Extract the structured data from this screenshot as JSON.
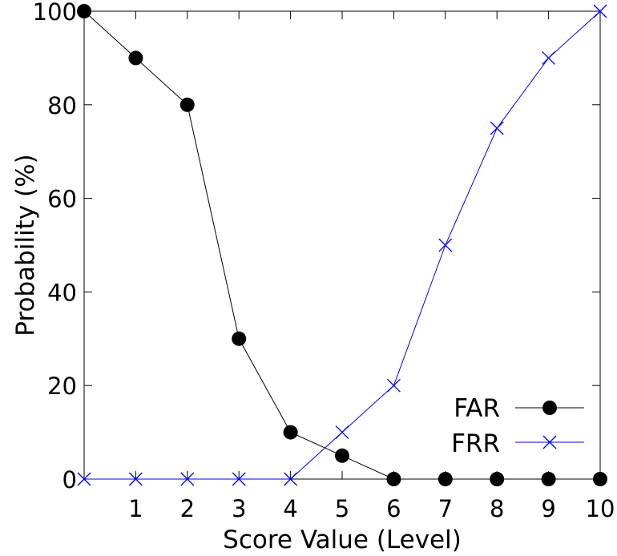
{
  "chart_data": {
    "type": "line",
    "title": "",
    "xlabel": "Score Value (Level)",
    "ylabel": "Probability (%)",
    "xlim": [
      0,
      10
    ],
    "ylim": [
      0,
      100
    ],
    "x_ticks": [
      1,
      2,
      3,
      4,
      5,
      6,
      7,
      8,
      9,
      10
    ],
    "x_tick_labels": [
      "1",
      "2",
      "3",
      "4",
      "5",
      "6",
      "7",
      "8",
      "9",
      "10"
    ],
    "y_ticks": [
      0,
      20,
      40,
      60,
      80,
      100
    ],
    "y_tick_labels": [
      "0",
      "20",
      "40",
      "60",
      "80",
      "100"
    ],
    "grid": false,
    "legend_position": "bottom-right",
    "x": [
      0,
      1,
      2,
      3,
      4,
      5,
      6,
      7,
      8,
      9,
      10
    ],
    "series": [
      {
        "name": "FAR",
        "color": "#000000",
        "marker": "filled-circle",
        "values": [
          100,
          90,
          80,
          30,
          10,
          5,
          0,
          0,
          0,
          0,
          0
        ]
      },
      {
        "name": "FRR",
        "color": "#0000ff",
        "marker": "cross",
        "values": [
          0,
          0,
          0,
          0,
          0,
          10,
          20,
          50,
          75,
          90,
          100
        ]
      }
    ]
  }
}
